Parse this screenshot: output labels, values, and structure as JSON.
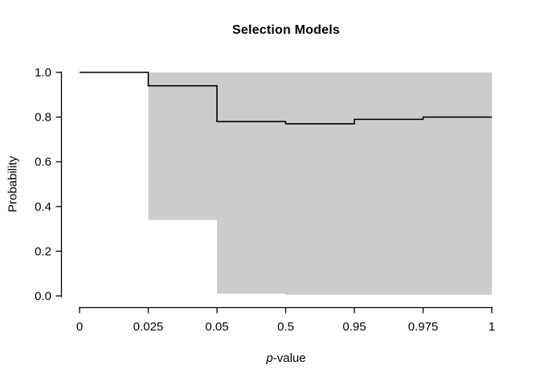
{
  "chart_data": {
    "type": "line",
    "subtype": "step-function-with-confidence-band",
    "title": "Selection Models",
    "xlabel": "p-value",
    "xlabel_parts": [
      {
        "text": "p",
        "italic": true
      },
      {
        "text": "-value",
        "italic": false
      }
    ],
    "ylabel": "Probability",
    "x_ticks": [
      "0",
      "0.025",
      "0.05",
      "0.5",
      "0.95",
      "0.975",
      "1"
    ],
    "x_scale": "ordinal-equal-spacing",
    "y_ticks": [
      "0.0",
      "0.2",
      "0.4",
      "0.6",
      "0.8",
      "1.0"
    ],
    "ylim": [
      0,
      1
    ],
    "series": [
      {
        "name": "probability-step",
        "segments": [
          {
            "x_from": "0",
            "x_to": "0.025",
            "probability": 1.0
          },
          {
            "x_from": "0.025",
            "x_to": "0.05",
            "probability": 0.94
          },
          {
            "x_from": "0.05",
            "x_to": "0.5",
            "probability": 0.78
          },
          {
            "x_from": "0.5",
            "x_to": "0.95",
            "probability": 0.77
          },
          {
            "x_from": "0.95",
            "x_to": "0.975",
            "probability": 0.79
          },
          {
            "x_from": "0.975",
            "x_to": "1",
            "probability": 0.8
          }
        ]
      }
    ],
    "band_segments": [
      {
        "x_from": "0.025",
        "x_to": "0.05",
        "lower": 0.34,
        "upper": 1.0
      },
      {
        "x_from": "0.05",
        "x_to": "0.5",
        "lower": 0.01,
        "upper": 1.0
      },
      {
        "x_from": "0.5",
        "x_to": "1",
        "lower": 0.005,
        "upper": 1.0
      }
    ],
    "legend": "none",
    "grid": "off",
    "colors": {
      "band": "#cccccc",
      "line": "#000000",
      "axis": "#000000",
      "text": "#000000",
      "background": "#ffffff"
    }
  }
}
